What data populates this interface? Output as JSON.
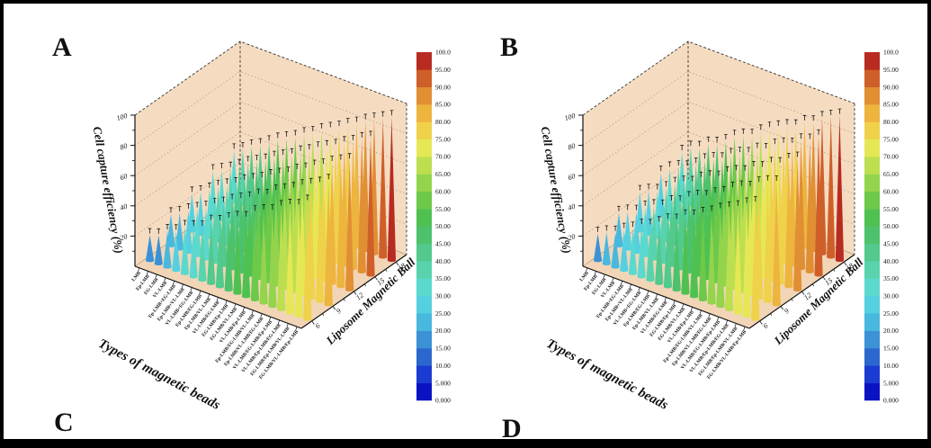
{
  "figure": {
    "panel_letters": [
      "A",
      "B",
      "C",
      "D"
    ],
    "background": "#ffffff",
    "border_color": "#000000"
  },
  "chart_data": [
    {
      "type": "bar",
      "subtype": "3d-cone-bars",
      "panel": "A",
      "xlabel": "Types of magnetic beads",
      "ylabel": "Liposome Magnetic Ball",
      "zlabel": "Cell capture efficiency (%)",
      "zlim": [
        0,
        100
      ],
      "z_ticks": [
        20,
        40,
        60,
        80,
        100
      ],
      "y_ticks": [
        6,
        9,
        12,
        15,
        18
      ],
      "error_bars": true,
      "grid": true,
      "categories": [
        "LMB",
        "Ep-LMB",
        "EG-LMB",
        "VL-LMB",
        "Ep-LMB+EG-LMB",
        "Ep-LMB+VL-LMB",
        "VL-LMB+EG-LMB",
        "Ep-LMB/EG-LMB",
        "Ep-LMB/VL-LMB",
        "VL-LMB/EG-LMB",
        "EG-LMB/Ep-LMB",
        "EG-LMB/VL-LMB",
        "VL-LMB/Ep-LMB",
        "Ep-LMB/EG-LMB/VL-LMB",
        "Ep-LMB/VL-LMB/EG-LMB",
        "VL-LMB/EG-LMB/Ep-LMB",
        "VL-LMB/Ep-LMB/EG-LMB",
        "EG-LMB/Ep-LMB/VL-LMB",
        "EG-LMB/VL-LMB/Ep-LMB"
      ],
      "series": [
        {
          "name": "6",
          "values": [
            17,
            19,
            24,
            26,
            31,
            33,
            35,
            41,
            43,
            47,
            50,
            52,
            58,
            61,
            63,
            68,
            71,
            73,
            78
          ]
        },
        {
          "name": "9",
          "values": [
            21,
            24,
            28,
            31,
            34,
            38,
            41,
            45,
            48,
            51,
            55,
            57,
            62,
            65,
            68,
            72,
            75,
            78,
            82
          ]
        },
        {
          "name": "12",
          "values": [
            25,
            28,
            32,
            36,
            39,
            42,
            46,
            49,
            52,
            56,
            59,
            62,
            66,
            69,
            73,
            76,
            80,
            83,
            86
          ]
        },
        {
          "name": "15",
          "values": [
            30,
            33,
            36,
            40,
            44,
            47,
            50,
            54,
            57,
            60,
            64,
            67,
            71,
            74,
            77,
            81,
            84,
            88,
            91
          ]
        },
        {
          "name": "18",
          "values": [
            34,
            37,
            41,
            44,
            48,
            52,
            55,
            58,
            62,
            65,
            69,
            72,
            75,
            79,
            82,
            86,
            89,
            92,
            95
          ]
        }
      ],
      "colorbar": {
        "ticks": [
          "0.000",
          "5.000",
          "10.00",
          "15.00",
          "20.00",
          "25.00",
          "30.00",
          "35.00",
          "40.00",
          "45.00",
          "50.00",
          "55.00",
          "60.00",
          "65.00",
          "70.00",
          "75.00",
          "80.00",
          "85.00",
          "90.00",
          "95.00",
          "100.0"
        ],
        "colors": [
          "#0a12c4",
          "#1c3bd2",
          "#2c67d0",
          "#3b92d6",
          "#49b8de",
          "#54d0e0",
          "#5bd9cf",
          "#58d3ae",
          "#52c98d",
          "#4dc26c",
          "#4fc151",
          "#6cc94a",
          "#93d44c",
          "#bcdf50",
          "#e5e854",
          "#f0d14a",
          "#edb43e",
          "#e18f33",
          "#cf5f29",
          "#b72b20"
        ]
      },
      "style": {
        "wall_color": "#f5dcc1",
        "floor_color": "#f1d5b6",
        "grid_color": "#b39b7d"
      }
    },
    {
      "type": "bar",
      "subtype": "3d-cone-bars",
      "panel": "B",
      "xlabel": "Types of magnetic beads",
      "ylabel": "Liposome Magnetic Ball",
      "zlabel": "Cell capture efficiency (%)",
      "zlim": [
        0,
        100
      ],
      "z_ticks": [
        20,
        40,
        60,
        80,
        100
      ],
      "y_ticks": [
        6,
        9,
        12,
        15,
        18
      ],
      "error_bars": true,
      "grid": true,
      "categories": [
        "LMB",
        "Ep-LMB",
        "EG-LMB",
        "VL-LMB",
        "Ep-LMB+EG-LMB",
        "Ep-LMB+VL-LMB",
        "VL-LMB+EG-LMB",
        "Ep-LMB/EG-LMB",
        "Ep-LMB/VL-LMB",
        "VL-LMB/EG-LMB",
        "EG-LMB/Ep-LMB",
        "EG-LMB/VL-LMB",
        "VL-LMB/Ep-LMB",
        "Ep-LMB/EG-LMB/VL-LMB",
        "Ep-LMB/VL-LMB/EG-LMB",
        "VL-LMB/EG-LMB/Ep-LMB",
        "VL-LMB/Ep-LMB/EG-LMB",
        "EG-LMB/Ep-LMB/VL-LMB",
        "EG-LMB/VL-LMB/Ep-LMB"
      ],
      "series": [
        {
          "name": "6",
          "values": [
            18,
            21,
            23,
            27,
            30,
            34,
            36,
            40,
            44,
            46,
            51,
            53,
            57,
            60,
            64,
            67,
            70,
            74,
            77
          ]
        },
        {
          "name": "9",
          "values": [
            22,
            25,
            27,
            32,
            35,
            37,
            42,
            44,
            49,
            52,
            54,
            58,
            61,
            66,
            69,
            71,
            76,
            79,
            81
          ]
        },
        {
          "name": "12",
          "values": [
            26,
            29,
            31,
            35,
            40,
            43,
            45,
            50,
            53,
            55,
            60,
            63,
            65,
            70,
            72,
            77,
            79,
            84,
            87
          ]
        },
        {
          "name": "15",
          "values": [
            29,
            34,
            37,
            39,
            43,
            48,
            51,
            53,
            58,
            61,
            63,
            68,
            70,
            75,
            78,
            80,
            85,
            87,
            92
          ]
        },
        {
          "name": "18",
          "values": [
            33,
            38,
            40,
            45,
            47,
            51,
            56,
            59,
            61,
            66,
            70,
            73,
            76,
            78,
            83,
            85,
            90,
            93,
            96
          ]
        }
      ],
      "colorbar": {
        "ticks": [
          "0.000",
          "5.000",
          "10.00",
          "15.00",
          "20.00",
          "25.00",
          "30.00",
          "35.00",
          "40.00",
          "45.00",
          "50.00",
          "55.00",
          "60.00",
          "65.00",
          "70.00",
          "75.00",
          "80.00",
          "85.00",
          "90.00",
          "95.00",
          "100.0"
        ],
        "colors": [
          "#0a12c4",
          "#1c3bd2",
          "#2c67d0",
          "#3b92d6",
          "#49b8de",
          "#54d0e0",
          "#5bd9cf",
          "#58d3ae",
          "#52c98d",
          "#4dc26c",
          "#4fc151",
          "#6cc94a",
          "#93d44c",
          "#bcdf50",
          "#e5e854",
          "#f0d14a",
          "#edb43e",
          "#e18f33",
          "#cf5f29",
          "#b72b20"
        ]
      },
      "style": {
        "wall_color": "#f5dcc1",
        "floor_color": "#f1d5b6",
        "grid_color": "#b39b7d"
      }
    }
  ]
}
